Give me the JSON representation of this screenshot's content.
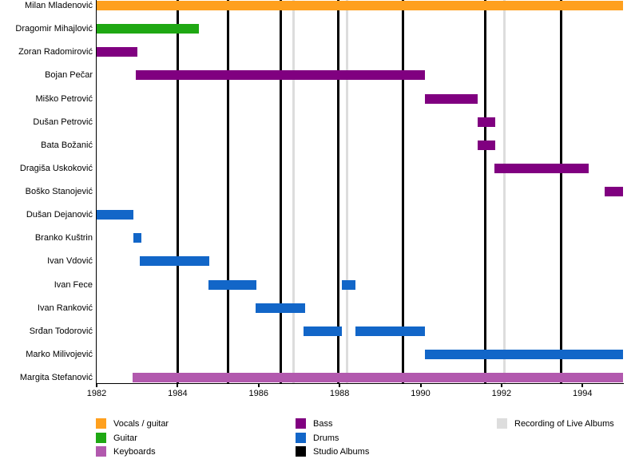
{
  "colors": {
    "vocals_guitar": "#FFA01E",
    "guitar": "#1FA813",
    "bass": "#800080",
    "drums": "#1266C8",
    "keyboards": "#B259AE",
    "studio_album": "#000000",
    "live_album": "#DDDDDD"
  },
  "chart_data": {
    "type": "bar",
    "subtype": "gantt-timeline",
    "title": "",
    "xlabel": "",
    "ylabel": "",
    "x_axis": {
      "range": [
        1982,
        1995
      ],
      "ticks": [
        1982,
        1984,
        1986,
        1988,
        1990,
        1992,
        1994
      ]
    },
    "members": [
      {
        "name": "Milan Mladenović",
        "role": "vocals_guitar",
        "periods": [
          [
            1982.0,
            1995.0
          ]
        ]
      },
      {
        "name": "Dragomir Mihajlović",
        "role": "guitar",
        "periods": [
          [
            1982.0,
            1984.53
          ]
        ]
      },
      {
        "name": "Zoran Radomirović",
        "role": "bass",
        "periods": [
          [
            1982.0,
            1983.01
          ]
        ]
      },
      {
        "name": "Bojan Pečar",
        "role": "bass",
        "periods": [
          [
            1982.97,
            1990.1
          ]
        ]
      },
      {
        "name": "Miško Petrović",
        "role": "bass",
        "periods": [
          [
            1990.1,
            1991.41
          ]
        ]
      },
      {
        "name": "Dušan Petrović",
        "role": "bass",
        "periods": [
          [
            1991.4,
            1991.85
          ]
        ]
      },
      {
        "name": "Bata Božanić",
        "role": "bass",
        "periods": [
          [
            1991.4,
            1991.85
          ]
        ]
      },
      {
        "name": "Dragiša Uskoković",
        "role": "bass",
        "periods": [
          [
            1991.83,
            1994.15
          ]
        ]
      },
      {
        "name": "Boško Stanojević",
        "role": "bass",
        "periods": [
          [
            1994.55,
            1995.0
          ]
        ]
      },
      {
        "name": "Dušan Dejanović",
        "role": "drums",
        "periods": [
          [
            1982.0,
            1982.91
          ]
        ]
      },
      {
        "name": "Branko Kuštrin",
        "role": "drums",
        "periods": [
          [
            1982.9,
            1983.1
          ]
        ]
      },
      {
        "name": "Ivan Vdović",
        "role": "drums",
        "periods": [
          [
            1983.07,
            1984.79
          ]
        ]
      },
      {
        "name": "Ivan Fece",
        "role": "drums",
        "periods": [
          [
            1984.76,
            1985.95
          ],
          [
            1988.06,
            1988.39
          ]
        ]
      },
      {
        "name": "Ivan Ranković",
        "role": "drums",
        "periods": [
          [
            1985.93,
            1987.14
          ]
        ]
      },
      {
        "name": "Srđan Todorović",
        "role": "drums",
        "periods": [
          [
            1987.11,
            1988.06
          ],
          [
            1988.39,
            1990.1
          ]
        ]
      },
      {
        "name": "Marko Milivojević",
        "role": "drums",
        "periods": [
          [
            1990.1,
            1995.0
          ]
        ]
      },
      {
        "name": "Margita Stefanović",
        "role": "keyboards",
        "periods": [
          [
            1982.89,
            1995.0
          ]
        ]
      }
    ],
    "events": {
      "studio_albums_years": [
        1984.0,
        1985.25,
        1986.55,
        1987.96,
        1989.57,
        1991.59,
        1993.47
      ],
      "live_albums_years": [
        1986.87,
        1988.19,
        1992.07
      ]
    },
    "legend": {
      "position": "bottom",
      "columns": [
        [
          {
            "label": "Vocals / guitar",
            "color_key": "vocals_guitar",
            "shape": "bar"
          },
          {
            "label": "Guitar",
            "color_key": "guitar",
            "shape": "bar"
          },
          {
            "label": "Keyboards",
            "color_key": "keyboards",
            "shape": "bar"
          }
        ],
        [
          {
            "label": "Bass",
            "color_key": "bass",
            "shape": "bar"
          },
          {
            "label": "Drums",
            "color_key": "drums",
            "shape": "bar"
          },
          {
            "label": "Studio Albums",
            "color_key": "studio_album",
            "shape": "line"
          }
        ],
        [
          {
            "label": "Recording of Live Albums",
            "color_key": "live_album",
            "shape": "line"
          }
        ]
      ]
    },
    "grid": false
  },
  "layout_note_values": {
    "row_count": 17
  }
}
